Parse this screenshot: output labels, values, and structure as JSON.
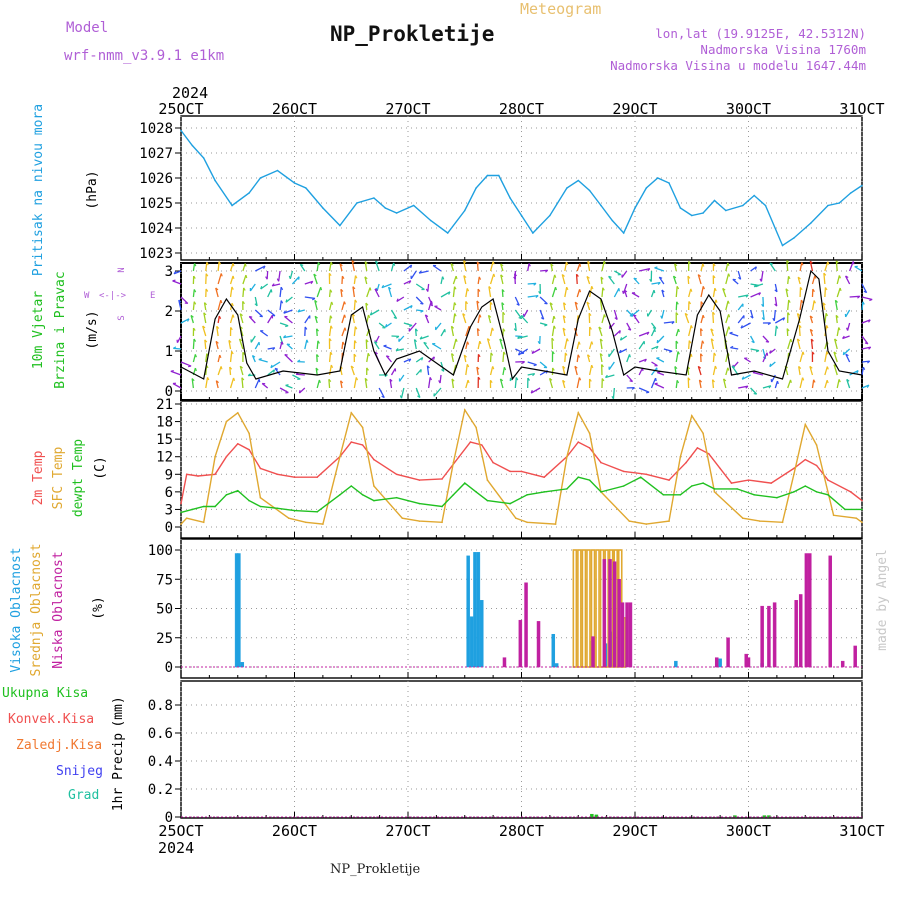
{
  "header": {
    "model_label": "Model",
    "model_name": "wrf-nmm_v3.9.1 e1km",
    "title": "NP_Prokletije",
    "subtitle": "Meteogram",
    "info": [
      "lon,lat (19.9125E, 42.5312N)",
      "Nadmorska Visina 1760m",
      "Nadmorska Visina u modelu 1647.44m"
    ]
  },
  "footer": {
    "station": "NP_Prokletije",
    "credit": "made by Angel"
  },
  "colors": {
    "pressure": "#1fa0e0",
    "temp2m": "#f05050",
    "sfc": "#e0a830",
    "dewpt": "#20c020",
    "high_cloud": "#1fa0e0",
    "mid_cloud": "#e0a830",
    "low_cloud": "#c020a0",
    "wind_speed": "#000000",
    "wind_gust": "#ff2020",
    "precip_total": "#20c020"
  },
  "chart_data": [
    {
      "type": "line",
      "title": "",
      "ylabel": "Pritisak na nivou mora",
      "unit": "(hPa)",
      "ylim": [
        1022.8,
        1028.3
      ],
      "yticks": [
        1023,
        1024,
        1025,
        1026,
        1027,
        1028
      ],
      "x_year_top": "2024",
      "xticks": [
        "25OCT",
        "26OCT",
        "27OCT",
        "28OCT",
        "29OCT",
        "30OCT",
        "31OCT"
      ],
      "x_days": [
        0,
        1,
        2,
        3,
        4,
        5,
        6
      ],
      "grid": true,
      "series": [
        {
          "key": "pressure",
          "color": "#1fa0e0",
          "x": [
            0,
            0.1,
            0.2,
            0.3,
            0.45,
            0.6,
            0.7,
            0.85,
            1.0,
            1.1,
            1.25,
            1.4,
            1.55,
            1.7,
            1.8,
            1.9,
            2.05,
            2.2,
            2.35,
            2.5,
            2.6,
            2.7,
            2.8,
            2.9,
            3.0,
            3.1,
            3.25,
            3.4,
            3.5,
            3.6,
            3.7,
            3.8,
            3.9,
            4.0,
            4.1,
            4.2,
            4.3,
            4.4,
            4.5,
            4.6,
            4.7,
            4.8,
            4.95,
            5.05,
            5.15,
            5.3,
            5.4,
            5.55,
            5.7,
            5.8,
            5.9,
            6.0
          ],
          "y": [
            1027.9,
            1027.3,
            1026.8,
            1025.9,
            1024.9,
            1025.4,
            1026.0,
            1026.3,
            1025.8,
            1025.6,
            1024.8,
            1024.1,
            1025.0,
            1025.2,
            1024.8,
            1024.6,
            1024.9,
            1024.3,
            1023.8,
            1024.7,
            1025.6,
            1026.1,
            1026.1,
            1025.2,
            1024.5,
            1023.8,
            1024.5,
            1025.6,
            1025.9,
            1025.5,
            1024.9,
            1024.3,
            1023.8,
            1024.8,
            1025.6,
            1026.0,
            1025.8,
            1024.8,
            1024.5,
            1024.6,
            1025.1,
            1024.7,
            1024.9,
            1025.3,
            1024.9,
            1023.3,
            1023.6,
            1024.2,
            1024.9,
            1025.0,
            1025.4,
            1025.7
          ]
        }
      ]
    },
    {
      "type": "line",
      "title": "",
      "ylabel": [
        "10m Vjetar",
        "Brzina i Pravac"
      ],
      "unit": "(m/s)",
      "compass": {
        "n": "N",
        "s": "S",
        "w": "W",
        "e": "E"
      },
      "ylim": [
        -0.2,
        3.2
      ],
      "yticks": [
        0,
        1,
        2,
        3
      ],
      "grid": true,
      "series": [
        {
          "key": "wind_speed",
          "color": "#000000",
          "x": [
            0,
            0.2,
            0.3,
            0.4,
            0.5,
            0.58,
            0.66,
            0.9,
            1.2,
            1.4,
            1.5,
            1.6,
            1.7,
            1.8,
            1.9,
            2.1,
            2.4,
            2.55,
            2.65,
            2.75,
            2.85,
            2.92,
            3.0,
            3.2,
            3.4,
            3.5,
            3.6,
            3.7,
            3.8,
            3.9,
            4.0,
            4.2,
            4.45,
            4.55,
            4.65,
            4.75,
            4.85,
            5.05,
            5.3,
            5.45,
            5.55,
            5.62,
            5.7,
            5.8,
            6.0
          ],
          "y": [
            0.6,
            0.3,
            1.8,
            2.3,
            1.9,
            0.7,
            0.3,
            0.5,
            0.4,
            0.5,
            1.9,
            2.1,
            1.0,
            0.4,
            0.8,
            1.0,
            0.4,
            1.6,
            2.1,
            2.3,
            1.2,
            0.3,
            0.6,
            0.5,
            0.4,
            1.8,
            2.5,
            2.3,
            1.5,
            0.4,
            0.6,
            0.5,
            0.4,
            1.9,
            2.4,
            2.0,
            0.4,
            0.5,
            0.3,
            1.8,
            3.0,
            2.8,
            1.0,
            0.5,
            0.4
          ]
        }
      ]
    },
    {
      "type": "line",
      "title": "",
      "ylabel": [
        "2m Temp",
        "SFC Temp",
        "dewpt Temp"
      ],
      "unit": "(C)",
      "ylim": [
        0,
        21
      ],
      "yticks": [
        0,
        3,
        6,
        9,
        12,
        15,
        18,
        21
      ],
      "grid": true,
      "series": [
        {
          "name": "2m Temp",
          "key": "temp2m",
          "color": "#f05050",
          "x": [
            0,
            0.05,
            0.15,
            0.3,
            0.4,
            0.5,
            0.6,
            0.7,
            0.85,
            1.0,
            1.2,
            1.4,
            1.5,
            1.6,
            1.7,
            1.9,
            2.1,
            2.3,
            2.45,
            2.55,
            2.65,
            2.75,
            2.9,
            3.0,
            3.2,
            3.4,
            3.5,
            3.6,
            3.7,
            3.9,
            4.1,
            4.3,
            4.45,
            4.55,
            4.65,
            4.75,
            4.85,
            5.0,
            5.2,
            5.4,
            5.5,
            5.6,
            5.7,
            5.9,
            6.0
          ],
          "y": [
            4,
            9,
            8.7,
            9,
            12,
            14.2,
            13.2,
            10,
            9,
            8.5,
            8.5,
            12,
            14.5,
            14,
            11.5,
            9,
            8,
            8.2,
            12,
            14.5,
            14,
            11,
            9.5,
            9.5,
            8.5,
            12,
            14.5,
            13.5,
            11,
            9.5,
            9,
            8,
            11,
            13.5,
            12.5,
            10,
            7.5,
            8,
            7.5,
            10,
            11.5,
            10.5,
            8,
            6,
            4.5
          ]
        },
        {
          "name": "SFC Temp",
          "key": "sfc",
          "color": "#e0a830",
          "x": [
            0,
            0.05,
            0.2,
            0.3,
            0.4,
            0.5,
            0.6,
            0.7,
            0.95,
            1.1,
            1.25,
            1.4,
            1.5,
            1.6,
            1.7,
            1.95,
            2.1,
            2.3,
            2.4,
            2.5,
            2.6,
            2.7,
            2.95,
            3.05,
            3.3,
            3.4,
            3.5,
            3.6,
            3.7,
            3.95,
            4.1,
            4.3,
            4.4,
            4.5,
            4.6,
            4.7,
            4.95,
            5.1,
            5.3,
            5.4,
            5.5,
            5.6,
            5.75,
            5.95,
            6.0
          ],
          "y": [
            0.5,
            1.5,
            0.8,
            12,
            18,
            19.5,
            16,
            5,
            1.5,
            0.8,
            0.5,
            12,
            19.5,
            17,
            7,
            1.5,
            1.0,
            0.8,
            11,
            20,
            17,
            8,
            1.5,
            0.8,
            0.5,
            12,
            19.5,
            16,
            6,
            1.0,
            0.5,
            1.0,
            12,
            19,
            16,
            6,
            1.5,
            1.0,
            0.8,
            9,
            17.5,
            14,
            2.0,
            1.5,
            0.8
          ]
        },
        {
          "name": "dewpt Temp",
          "key": "dewpt",
          "color": "#20c020",
          "x": [
            0,
            0.1,
            0.2,
            0.3,
            0.4,
            0.5,
            0.6,
            0.7,
            0.85,
            1.0,
            1.2,
            1.4,
            1.5,
            1.6,
            1.7,
            1.9,
            2.1,
            2.3,
            2.4,
            2.5,
            2.6,
            2.7,
            2.9,
            3.05,
            3.2,
            3.4,
            3.5,
            3.6,
            3.7,
            3.9,
            4.05,
            4.25,
            4.4,
            4.5,
            4.6,
            4.7,
            4.9,
            5.05,
            5.25,
            5.4,
            5.5,
            5.6,
            5.7,
            5.85,
            6.0
          ],
          "y": [
            2.5,
            3.0,
            3.5,
            3.5,
            5.5,
            6.2,
            4.5,
            3.5,
            3.2,
            2.8,
            2.6,
            5.5,
            7.0,
            5.5,
            4.5,
            5.0,
            4.0,
            3.5,
            5.5,
            7.5,
            6.0,
            4.5,
            4.0,
            5.5,
            6.0,
            6.5,
            8.5,
            8.0,
            6.0,
            7.0,
            8.5,
            5.5,
            5.5,
            7.0,
            7.5,
            6.5,
            6.5,
            5.5,
            5.0,
            6.0,
            7.0,
            6.0,
            5.5,
            3.0,
            3.0
          ]
        }
      ]
    },
    {
      "type": "bar",
      "title": "",
      "ylabel": [
        "Visoka Oblacnost",
        "Srednja Oblacnost",
        "Niska Oblacnost"
      ],
      "unit": "(%)",
      "ylim": [
        0,
        100
      ],
      "yticks": [
        0,
        25,
        50,
        75,
        100
      ],
      "grid": true,
      "series": [
        {
          "name": "Visoka Oblacnost",
          "key": "high_cloud",
          "color": "#1fa0e0",
          "x": [
            0.49,
            0.51,
            0.54,
            2.53,
            2.56,
            2.59,
            2.62,
            2.65,
            3.28,
            3.31,
            3.62,
            3.74,
            3.78,
            3.81,
            4.36,
            4.75,
            5.12
          ],
          "values": [
            97,
            97,
            4,
            95,
            43,
            98,
            98,
            57,
            28,
            3,
            22,
            20,
            30,
            30,
            5,
            7,
            3
          ]
        },
        {
          "name": "Srednja Oblacnost",
          "key": "mid_cloud",
          "color": "#e0a830",
          "x": [
            3.47,
            3.51,
            3.55,
            3.59,
            3.63,
            3.67,
            3.71,
            3.75,
            3.79,
            3.83,
            3.87,
            3.9
          ],
          "values": [
            100,
            100,
            100,
            100,
            100,
            100,
            100,
            100,
            100,
            100,
            100,
            42
          ]
        },
        {
          "name": "Niska Oblacnost",
          "key": "low_cloud",
          "color": "#c020a0",
          "x": [
            2.85,
            2.99,
            3.04,
            3.15,
            3.63,
            3.73,
            3.78,
            3.82,
            3.86,
            3.89,
            3.93,
            3.96,
            4.72,
            4.82,
            4.98,
            5.0,
            5.12,
            5.18,
            5.23,
            5.42,
            5.46,
            5.51,
            5.54,
            5.72,
            5.83,
            5.94
          ],
          "values": [
            8,
            40,
            72,
            39,
            26,
            92,
            92,
            90,
            75,
            55,
            55,
            55,
            8,
            25,
            11,
            8,
            52,
            52,
            55,
            57,
            62,
            97,
            97,
            95,
            5,
            18
          ]
        }
      ]
    },
    {
      "type": "bar",
      "title": "",
      "ylabel": "1hr Precip",
      "unit": "(mm)",
      "ylim": [
        0,
        0.95
      ],
      "yticks": [
        0,
        0.2,
        0.4,
        0.6,
        0.8
      ],
      "grid": true,
      "legend": [
        "Ukupna Kisa",
        "Konvek.Kisa",
        "Zaledj.Kisa",
        "Snijeg",
        "Grad"
      ],
      "legend_colors": [
        "#20c020",
        "#f05050",
        "#f07830",
        "#4040f0",
        "#20c0a0"
      ],
      "x_year_bottom": "2024",
      "series": [
        {
          "name": "Ukupna Kisa",
          "key": "precip_total",
          "color": "#20c020",
          "x": [
            3.62,
            3.66,
            4.88,
            5.14,
            5.18
          ],
          "values": [
            0.02,
            0.015,
            0.01,
            0.01,
            0.01
          ]
        }
      ]
    }
  ]
}
